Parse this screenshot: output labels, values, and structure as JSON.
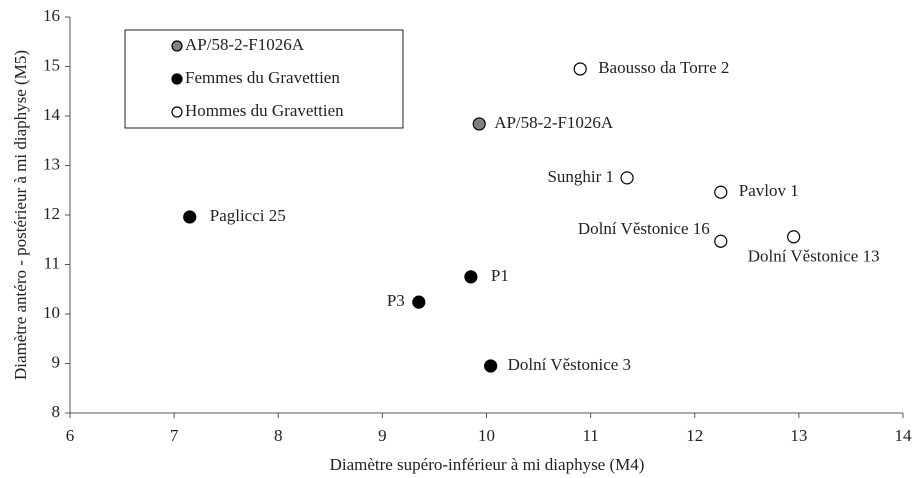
{
  "chart_data": {
    "type": "scatter",
    "xlabel": "Diamètre supéro-inférieur à mi diaphyse  (M4)",
    "ylabel": "Diamètre antéro - postérieur à mi diaphyse  (M5)",
    "xlim": [
      6,
      14
    ],
    "ylim": [
      8,
      16
    ],
    "xticks": [
      6,
      7,
      8,
      9,
      10,
      11,
      12,
      13,
      14
    ],
    "yticks": [
      8,
      9,
      10,
      11,
      12,
      13,
      14,
      15,
      16
    ],
    "grid": false,
    "legend": "upper left",
    "series": [
      {
        "name": "AP/58-2-F1026A",
        "color": "#808080",
        "x": [
          9.93
        ],
        "y": [
          13.84
        ],
        "labels": [
          "AP/58-2-F1026A"
        ]
      },
      {
        "name": "Femmes du Gravettien",
        "color": "#000000",
        "x": [
          7.15,
          9.85,
          9.35,
          10.04
        ],
        "y": [
          11.96,
          10.75,
          10.24,
          8.95
        ],
        "labels": [
          "Paglicci 25",
          "P1",
          "P3",
          "Dolní Věstonice  3"
        ]
      },
      {
        "name": "Hommes du Gravettien",
        "color": "#ffffff",
        "x": [
          10.9,
          11.35,
          12.25,
          12.25,
          12.95
        ],
        "y": [
          14.95,
          12.75,
          12.46,
          11.47,
          11.56
        ],
        "labels": [
          "Baousso da Torre 2",
          "Sunghir 1",
          "Pavlov 1",
          "Dolní Věstonice  16",
          "Dolní Věstonice  13"
        ]
      }
    ]
  }
}
